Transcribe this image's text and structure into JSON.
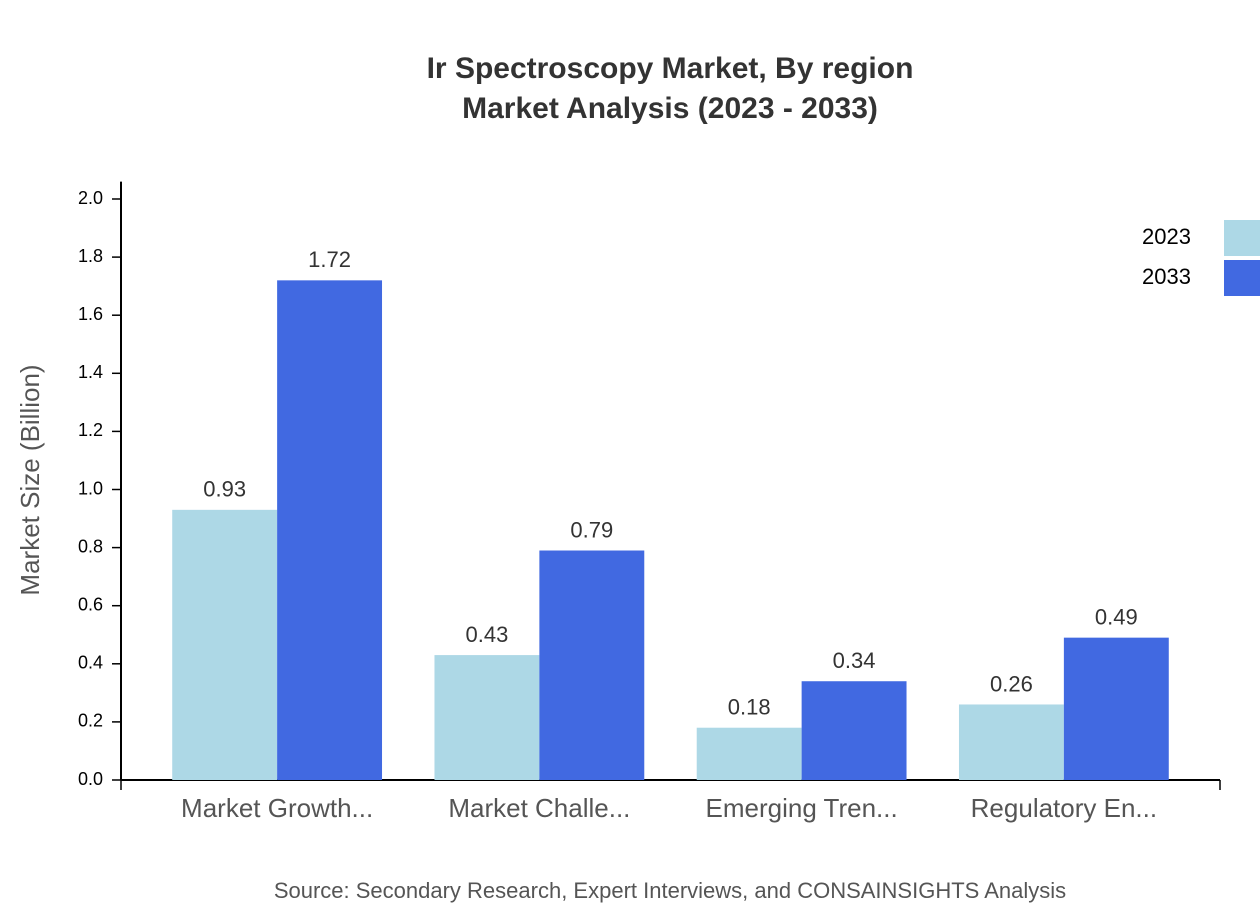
{
  "chart_data": {
    "type": "bar",
    "title": "Ir Spectroscopy Market, By region",
    "subtitle": "Market Analysis (2023 - 2033)",
    "y_label": "Market Size (Billion)",
    "source": "Source: Secondary Research, Expert Interviews, and CONSAINSIGHTS Analysis",
    "categories": [
      "Market Growth...",
      "Market Challe...",
      "Emerging Tren...",
      "Regulatory En..."
    ],
    "series": [
      {
        "name": "2023",
        "color": "#add8e6",
        "values": [
          0.93,
          0.43,
          0.18,
          0.26
        ]
      },
      {
        "name": "2033",
        "color": "#4169e1",
        "values": [
          1.72,
          0.79,
          0.34,
          0.49
        ]
      }
    ],
    "ylim": [
      0,
      2.06
    ],
    "yticks": [
      {
        "value": 0,
        "label": "0.0"
      },
      0.2,
      0.4,
      0.6,
      0.8,
      {
        "value": 1,
        "label": "1.0"
      },
      1.2,
      1.4,
      1.6,
      1.8,
      {
        "value": 2,
        "label": "2.0"
      }
    ],
    "legend": "top-right"
  }
}
